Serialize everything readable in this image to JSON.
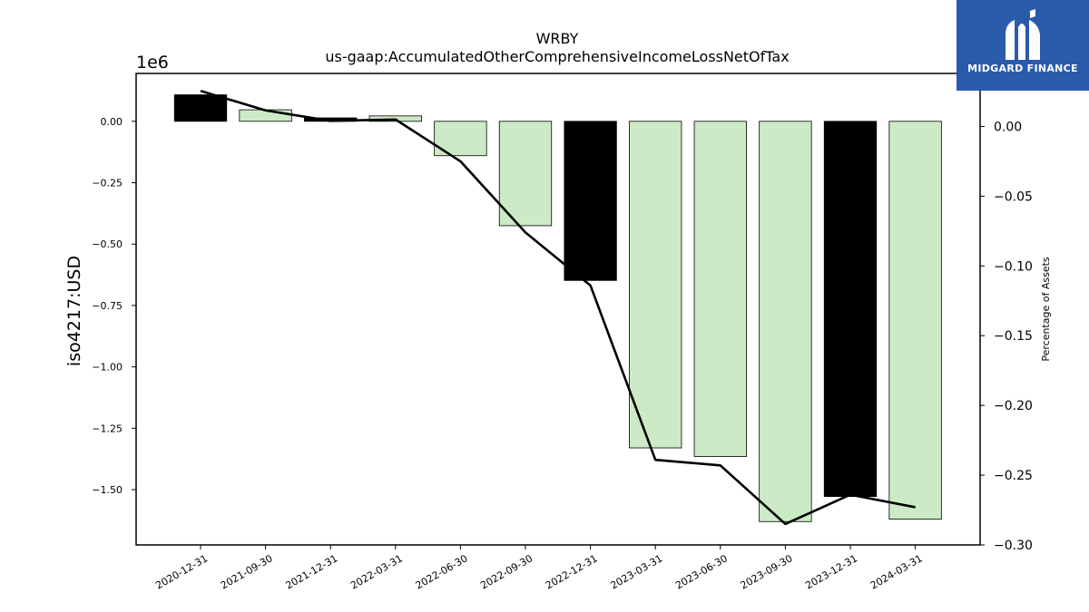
{
  "chart_data": {
    "type": "bar",
    "title": "WRBY",
    "subtitle": "us-gaap:AccumulatedOtherComprehensiveIncomeLossNetOfTax",
    "ylabel": "iso4217:USD",
    "y_multiplier": "1e6",
    "y2label": "Percentage of Assets",
    "categories": [
      "2020-12-31",
      "2021-09-30",
      "2021-12-31",
      "2022-03-31",
      "2022-06-30",
      "2022-09-30",
      "2022-12-31",
      "2023-03-31",
      "2023-06-30",
      "2023-09-30",
      "2023-12-31",
      "2024-03-31"
    ],
    "series": [
      {
        "type": "bar",
        "values": [
          108000,
          47000,
          14000,
          22000,
          -140000,
          -425000,
          -648000,
          -1330000,
          -1365000,
          -1630000,
          -1528000,
          -1620000
        ],
        "colors": [
          "#000000",
          "#cdeac6",
          "#000000",
          "#cdeac6",
          "#cdeac6",
          "#cdeac6",
          "#000000",
          "#cdeac6",
          "#cdeac6",
          "#cdeac6",
          "#000000",
          "#cdeac6"
        ]
      },
      {
        "type": "line",
        "axis": "right",
        "values": [
          0.0255,
          0.0115,
          0.004,
          0.005,
          -0.025,
          -0.076,
          -0.114,
          -0.239,
          -0.243,
          -0.285,
          -0.264,
          -0.273
        ]
      }
    ],
    "ylim": [
      -1725000,
      195000
    ],
    "y2lim": [
      -0.3,
      0.038
    ],
    "yticks": [
      0,
      -0.25,
      -0.5,
      -0.75,
      -1.0,
      -1.25,
      -1.5
    ],
    "ytick_labels": [
      "0.00",
      "−0.25",
      "−0.50",
      "−0.75",
      "−1.00",
      "−1.25",
      "−1.50"
    ],
    "y2ticks": [
      0.0,
      -0.05,
      -0.1,
      -0.15,
      -0.2,
      -0.25,
      -0.3
    ],
    "y2tick_labels": [
      "0.00",
      "−0.05",
      "−0.10",
      "−0.15",
      "−0.20",
      "−0.25",
      "−0.30"
    ],
    "grid": false,
    "legend": "none"
  },
  "logo": {
    "text": "MIDGARD FINANCE",
    "background": "#2a5bab"
  }
}
